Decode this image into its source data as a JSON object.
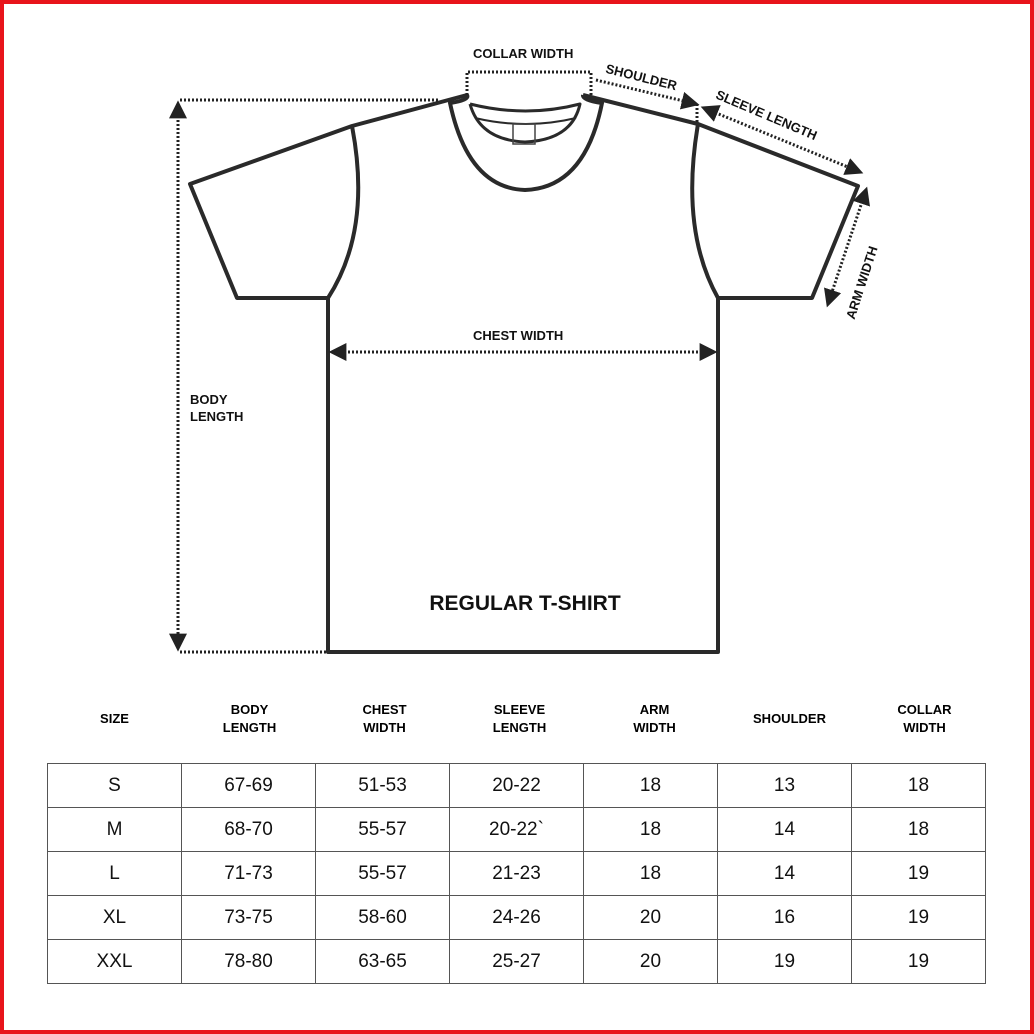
{
  "diagram": {
    "title": "REGULAR T-SHIRT",
    "labels": {
      "collar_width": "COLLAR WIDTH",
      "shoulder": "SHOULDER",
      "sleeve_length": "SLEEVE LENGTH",
      "arm_width": "ARM WIDTH",
      "chest_width": "CHEST WIDTH",
      "body_length_1": "BODY",
      "body_length_2": "LENGTH"
    },
    "colors": {
      "frame": "#e8141b",
      "lines": "#222222"
    }
  },
  "table": {
    "headers": [
      "SIZE",
      "BODY LENGTH",
      "CHEST WIDTH",
      "SLEEVE LENGTH",
      "ARM WIDTH",
      "SHOULDER",
      "COLLAR WIDTH"
    ],
    "rows": [
      [
        "S",
        "67-69",
        "51-53",
        "20-22",
        "18",
        "13",
        "18"
      ],
      [
        "M",
        "68-70",
        "55-57",
        "20-22`",
        "18",
        "14",
        "18"
      ],
      [
        "L",
        "71-73",
        "55-57",
        "21-23",
        "18",
        "14",
        "19"
      ],
      [
        "XL",
        "73-75",
        "58-60",
        "24-26",
        "20",
        "16",
        "19"
      ],
      [
        "XXL",
        "78-80",
        "63-65",
        "25-27",
        "20",
        "19",
        "19"
      ]
    ]
  }
}
